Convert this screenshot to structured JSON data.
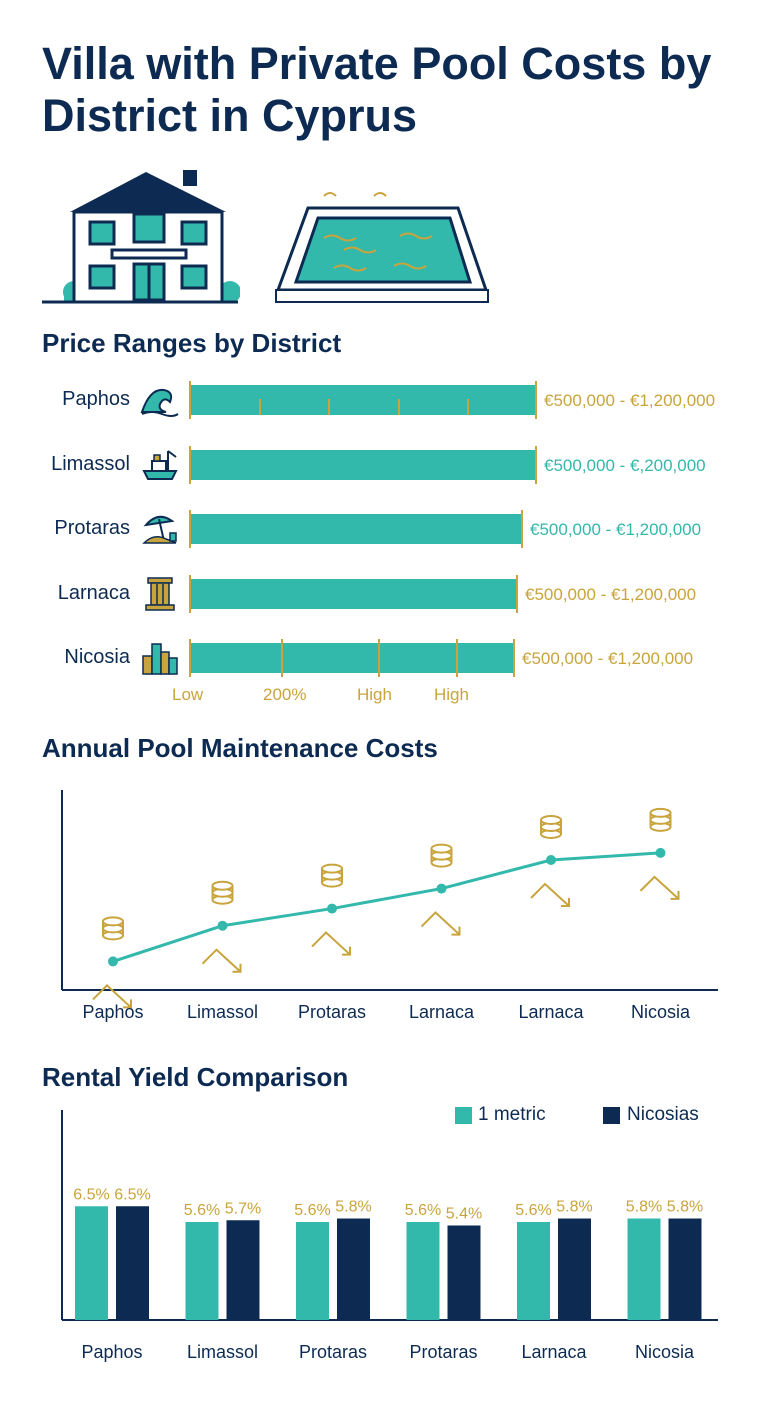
{
  "title": "Villa with Private Pool Costs by District in Cyprus",
  "icons": {
    "villa": "villa-house-icon",
    "pool": "swimming-pool-icon"
  },
  "colors": {
    "navy": "#0d2b52",
    "teal": "#33b8ac",
    "gold": "#c9a43c"
  },
  "price_section": {
    "title": "Price Ranges by District",
    "rows": [
      {
        "district": "Paphos",
        "icon": "wave-icon",
        "value_text": "€500,000 - €1,200,000",
        "value_color": "#c9a43c"
      },
      {
        "district": "Limassol",
        "icon": "port-ship-icon",
        "value_text": "€500,000 - €,200,000",
        "value_color": "#33b8ac"
      },
      {
        "district": "Protaras",
        "icon": "beach-umbrella-icon",
        "value_text": "€500,000 - €1,200,000",
        "value_color": "#33b8ac"
      },
      {
        "district": "Larnaca",
        "icon": "ancient-column-icon",
        "value_text": "€500,000 - €1,200,000",
        "value_color": "#c9a43c"
      },
      {
        "district": "Nicosia",
        "icon": "city-skyline-icon",
        "value_text": "€500,000 - €1,200,000",
        "value_color": "#c9a43c"
      }
    ],
    "scale_labels": [
      "Low",
      "200%",
      "High",
      "High"
    ]
  },
  "maintenance_section": {
    "title": "Annual Pool Maintenance Costs",
    "icon": "coin-stack-icon"
  },
  "rental_section": {
    "title": "Rental Yield Comparison",
    "legend": [
      "1 metric",
      "Nicosias"
    ]
  },
  "chart_data": [
    {
      "type": "bar",
      "title": "Price Ranges by District",
      "categories": [
        "Paphos",
        "Limassol",
        "Protaras",
        "Larnaca",
        "Nicosia"
      ],
      "ranges": [
        [
          "€500,000",
          "€1,200,000"
        ],
        [
          "€500,000",
          "€,200,000"
        ],
        [
          "€500,000",
          "€1,200,000"
        ],
        [
          "€500,000",
          "€1,200,000"
        ],
        [
          "€500,000",
          "€1,200,000"
        ]
      ],
      "relative_length": [
        1.0,
        1.0,
        0.96,
        0.945,
        0.935
      ],
      "xticks": [
        "Low",
        "200%",
        "High",
        "High"
      ]
    },
    {
      "type": "line",
      "title": "Annual Pool Maintenance Costs",
      "categories": [
        "Paphos",
        "Limassol",
        "Protaras",
        "Larnaca",
        "Larnaca",
        "Nicosia"
      ],
      "values": [
        0.2,
        0.45,
        0.57,
        0.71,
        0.91,
        0.96
      ],
      "ylim": [
        0,
        1.4
      ],
      "grid": false
    },
    {
      "type": "bar",
      "title": "Rental Yield Comparison",
      "categories": [
        "Paphos",
        "Limassol",
        "Protaras",
        "Protaras",
        "Larnaca",
        "Nicosia"
      ],
      "series": [
        {
          "name": "1 metric",
          "values": [
            6.5,
            5.6,
            5.6,
            5.6,
            5.6,
            5.8
          ],
          "labels": [
            "6.5%",
            "5.6%",
            "5.6%",
            "5.6%",
            "5.6%",
            "5.8%"
          ]
        },
        {
          "name": "Nicosias",
          "values": [
            6.5,
            5.7,
            5.8,
            5.4,
            5.8,
            5.8
          ],
          "labels": [
            "6.5%",
            "5.7%",
            "5.8%",
            "5.4%",
            "5.8%",
            "5.8%"
          ]
        }
      ],
      "ylim": [
        0,
        12
      ],
      "legend": "top-right"
    }
  ]
}
